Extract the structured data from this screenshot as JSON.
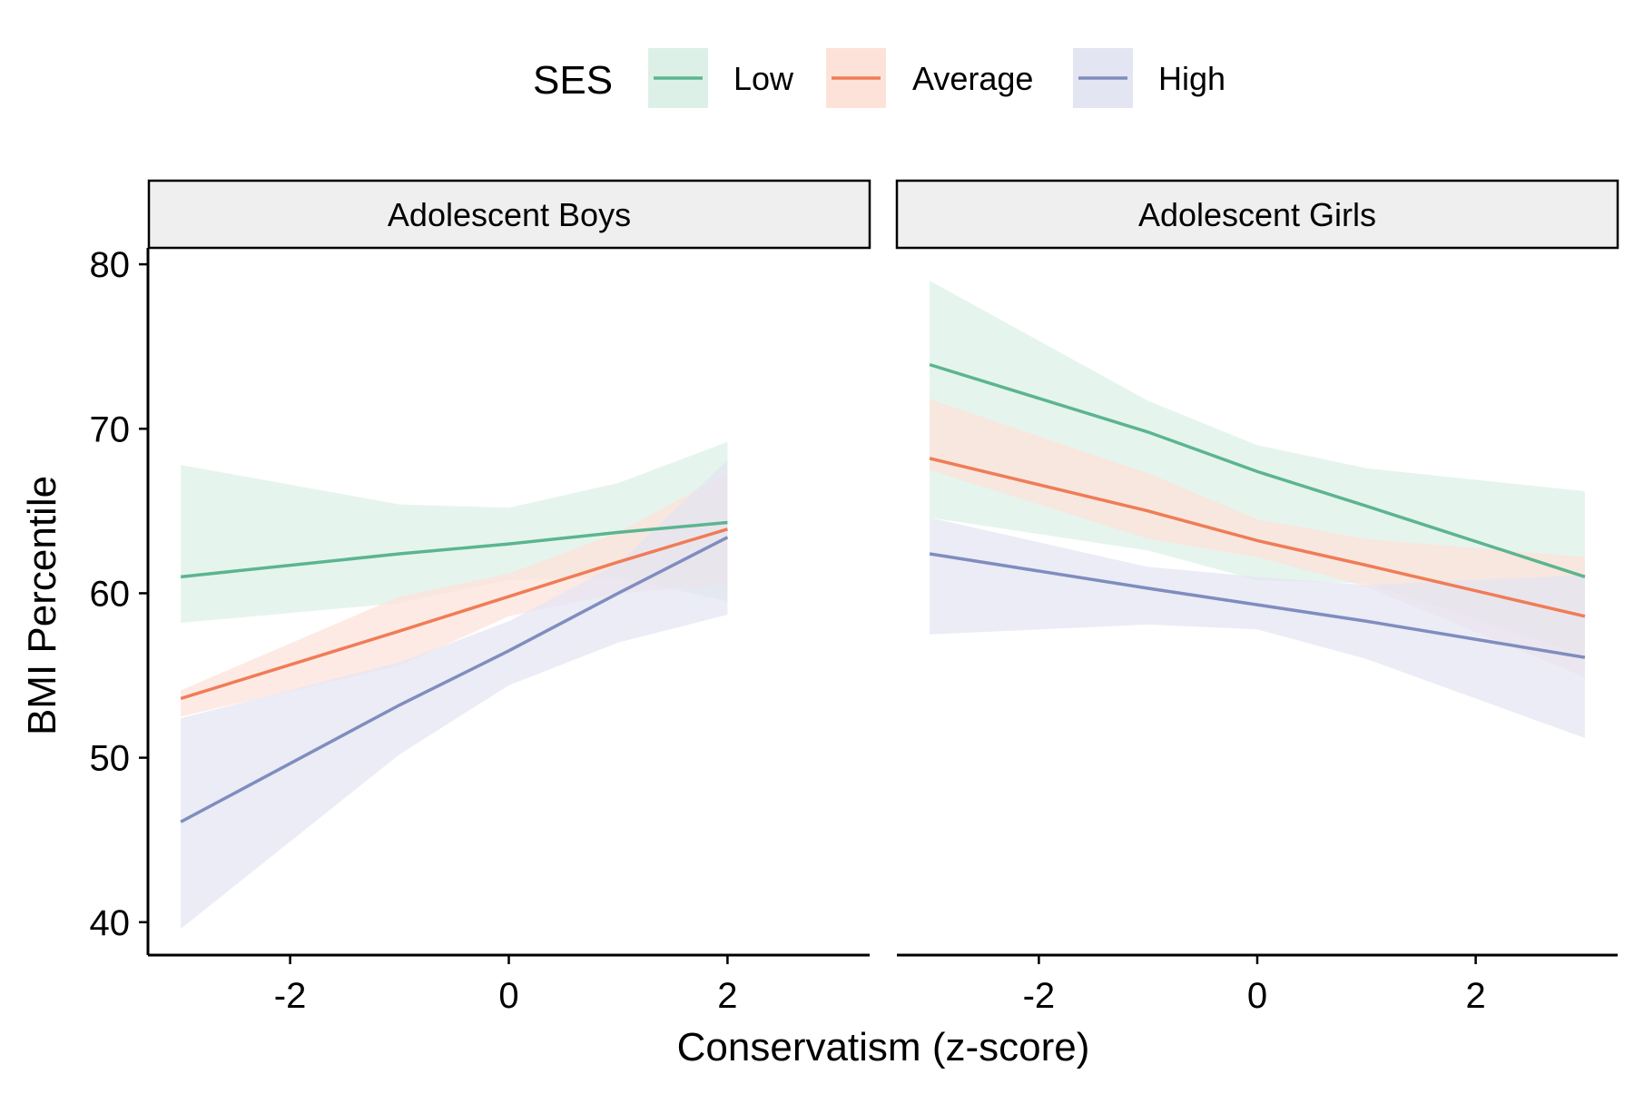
{
  "legend": {
    "title": "SES",
    "entries": [
      {
        "label": "Low",
        "color": "#5bb58f",
        "fill": "#ddf0e8"
      },
      {
        "label": "Average",
        "color": "#f07c56",
        "fill": "#fde2da"
      },
      {
        "label": "High",
        "color": "#7f8dbe",
        "fill": "#e3e5f2"
      }
    ]
  },
  "chart_data": {
    "type": "line",
    "xlabel": "Conservatism (z-score)",
    "ylabel": "BMI Percentile",
    "xlim": [
      -3.3,
      3.3
    ],
    "ylim": [
      38,
      81
    ],
    "x_ticks": [
      -2,
      0,
      2
    ],
    "y_ticks": [
      40,
      50,
      60,
      70,
      80
    ],
    "grid": false,
    "legend_position": "top",
    "panels": [
      {
        "title": "Adolescent Boys",
        "x": [
          -3,
          -1,
          0,
          1,
          2
        ],
        "series": [
          {
            "name": "Low",
            "color": "#5bb58f",
            "values": [
              61.0,
              62.4,
              63.0,
              63.7,
              64.3
            ],
            "lower": [
              58.2,
              59.4,
              60.8,
              61.0,
              59.5
            ],
            "upper": [
              67.8,
              65.4,
              65.2,
              66.7,
              69.2
            ]
          },
          {
            "name": "Average",
            "color": "#f07c56",
            "values": [
              53.6,
              57.7,
              59.8,
              61.9,
              63.9
            ],
            "lower": [
              52.5,
              55.6,
              58.6,
              60.0,
              60.5
            ],
            "upper": [
              54.1,
              59.8,
              61.2,
              63.7,
              67.3
            ]
          },
          {
            "name": "High",
            "color": "#7f8dbe",
            "values": [
              46.1,
              53.2,
              56.5,
              60.0,
              63.4
            ],
            "lower": [
              39.6,
              50.2,
              54.4,
              57.0,
              58.7
            ],
            "upper": [
              52.4,
              55.8,
              58.3,
              61.8,
              68.1
            ]
          }
        ]
      },
      {
        "title": "Adolescent Girls",
        "x": [
          -3,
          -1,
          0,
          1,
          3
        ],
        "series": [
          {
            "name": "Low",
            "color": "#5bb58f",
            "values": [
              73.9,
              69.8,
              67.4,
              65.3,
              61.0
            ],
            "lower": [
              64.6,
              62.6,
              60.8,
              60.6,
              56.2
            ],
            "upper": [
              79.0,
              71.7,
              69.0,
              67.6,
              66.2
            ]
          },
          {
            "name": "Average",
            "color": "#f07c56",
            "values": [
              68.2,
              65.0,
              63.2,
              61.7,
              58.6
            ],
            "lower": [
              67.5,
              63.3,
              62.2,
              60.4,
              54.9
            ],
            "upper": [
              71.8,
              67.3,
              64.5,
              63.3,
              62.2
            ]
          },
          {
            "name": "High",
            "color": "#7f8dbe",
            "values": [
              62.4,
              60.3,
              59.3,
              58.3,
              56.1
            ],
            "lower": [
              57.5,
              58.1,
              57.8,
              56.0,
              51.2
            ],
            "upper": [
              64.6,
              61.6,
              61.0,
              60.5,
              61.1
            ]
          }
        ]
      }
    ]
  }
}
